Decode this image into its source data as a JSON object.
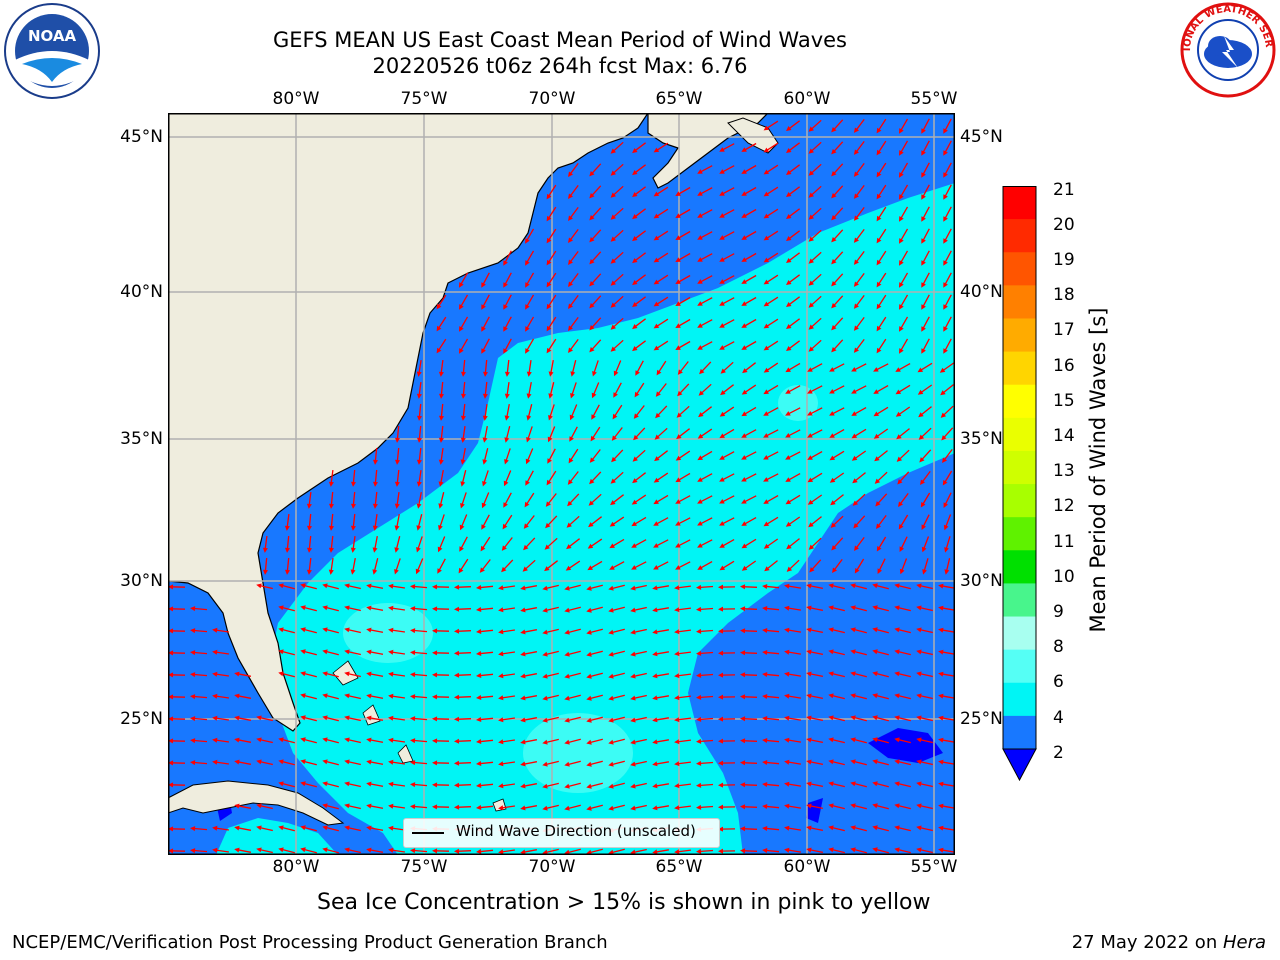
{
  "title": {
    "line1": "GEFS MEAN US East Coast Mean Period of Wind Waves",
    "line2": "20220526 t06z 264h fcst   Max: 6.76"
  },
  "map": {
    "lon_ticks": [
      "80°W",
      "75°W",
      "70°W",
      "65°W",
      "60°W",
      "55°W"
    ],
    "lat_ticks": [
      "45°N",
      "40°N",
      "35°N",
      "30°N",
      "25°N"
    ],
    "legend": "Wind Wave Direction (unscaled)",
    "colors": {
      "land": "#efedde",
      "ocean_low": "#1878ff",
      "ocean_mid": "#00f5f5",
      "arrow": "#ff0000",
      "grid": "#b0b0b0"
    }
  },
  "colorbar": {
    "label": "Mean Period of Wind Waves [s]",
    "ticks": [
      "21",
      "20",
      "19",
      "18",
      "17",
      "16",
      "15",
      "14",
      "13",
      "12",
      "11",
      "10",
      "9",
      "8",
      "6",
      "4",
      "2"
    ],
    "colors": [
      "#ff0000",
      "#ff2a00",
      "#ff5500",
      "#ff8000",
      "#ffab00",
      "#ffd500",
      "#ffff00",
      "#eaff00",
      "#cfff00",
      "#a8ff00",
      "#5ff200",
      "#00e000",
      "#48f58c",
      "#a8fff0",
      "#55fff5",
      "#00f5f5",
      "#1878ff"
    ],
    "extend_color": "#0000ff"
  },
  "logos": {
    "left": "NOAA",
    "right": "NATIONAL WEATHER SERVICE"
  },
  "footnote": "Sea Ice Concentration > 15% is shown in pink to yellow",
  "credit_left": "NCEP/EMC/Verification Post Processing Product Generation Branch",
  "credit_right_prefix": "27 May 2022 on ",
  "credit_right_host": "Hera"
}
